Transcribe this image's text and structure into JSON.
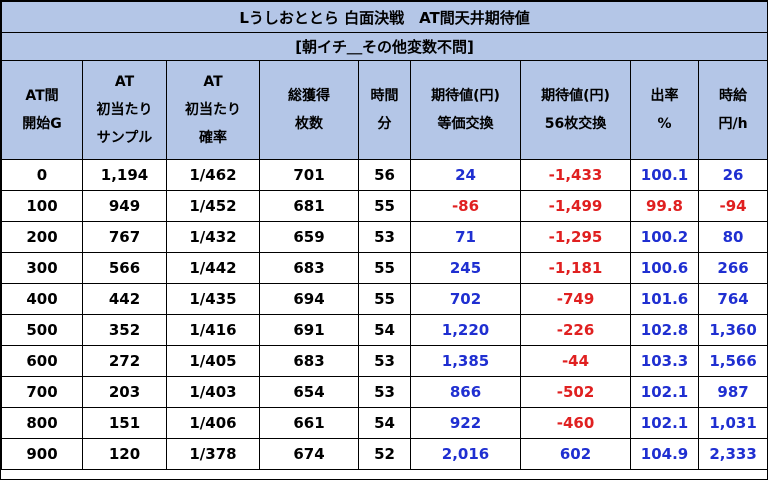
{
  "title": "Lうしおととら 白面決戦　AT間天井期待値",
  "subtitle": "[朝イチ＿その他変数不問]",
  "colors": {
    "header_bg": "#b4c6e7",
    "positive": "#1f2fd1",
    "negative": "#e02020"
  },
  "headers": [
    [
      "AT間",
      "開始G"
    ],
    [
      "AT",
      "初当たり",
      "サンプル"
    ],
    [
      "AT",
      "初当たり",
      "確率"
    ],
    [
      "総獲得",
      "枚数"
    ],
    [
      "時間",
      "分"
    ],
    [
      "期待値(円)",
      "等価交換"
    ],
    [
      "期待値(円)",
      "56枚交換"
    ],
    [
      "出率",
      "%"
    ],
    [
      "時給",
      "円/h"
    ]
  ],
  "rows": [
    [
      "0",
      "1,194",
      "1/462",
      "701",
      "56",
      "24",
      "-1,433",
      "100.1",
      "26"
    ],
    [
      "100",
      "949",
      "1/452",
      "681",
      "55",
      "-86",
      "-1,499",
      "99.8",
      "-94"
    ],
    [
      "200",
      "767",
      "1/432",
      "659",
      "53",
      "71",
      "-1,295",
      "100.2",
      "80"
    ],
    [
      "300",
      "566",
      "1/442",
      "683",
      "55",
      "245",
      "-1,181",
      "100.6",
      "266"
    ],
    [
      "400",
      "442",
      "1/435",
      "694",
      "55",
      "702",
      "-749",
      "101.6",
      "764"
    ],
    [
      "500",
      "352",
      "1/416",
      "691",
      "54",
      "1,220",
      "-226",
      "102.8",
      "1,360"
    ],
    [
      "600",
      "272",
      "1/405",
      "683",
      "53",
      "1,385",
      "-44",
      "103.3",
      "1,566"
    ],
    [
      "700",
      "203",
      "1/403",
      "654",
      "53",
      "866",
      "-502",
      "102.1",
      "987"
    ],
    [
      "800",
      "151",
      "1/406",
      "661",
      "54",
      "922",
      "-460",
      "102.1",
      "1,031"
    ],
    [
      "900",
      "120",
      "1/378",
      "674",
      "52",
      "2,016",
      "602",
      "104.9",
      "2,333"
    ]
  ]
}
